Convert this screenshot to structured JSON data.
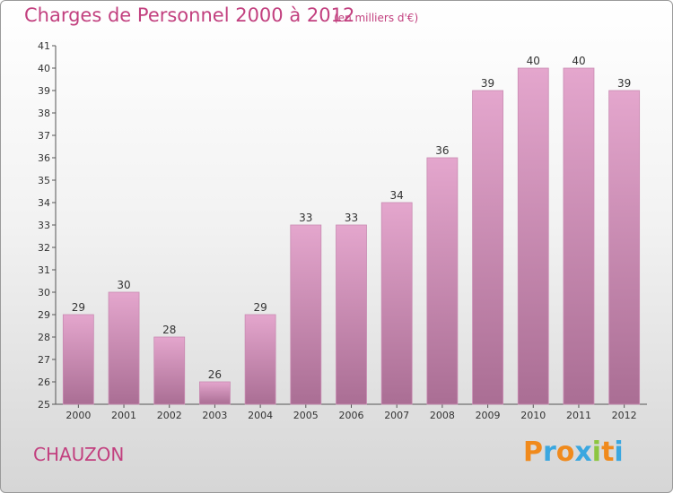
{
  "header": {
    "title": "Charges de Personnel 2000 à 2012",
    "subtitle": "(en milliers d'€)"
  },
  "footer": {
    "commune": "CHAUZON",
    "logo_text": "Proxiti",
    "logo_colors": [
      "#f08a1c",
      "#3aa7e0",
      "#f08a1c",
      "#3aa7e0",
      "#8cc63f",
      "#f08a1c",
      "#3aa7e0"
    ]
  },
  "colors": {
    "title": "#c2407f",
    "bar_top": "#e4a6cd",
    "bar_bottom": "#aa6e94",
    "axis_text": "#333333"
  },
  "chart_data": {
    "type": "bar",
    "title": "Charges de Personnel 2000 à 2012",
    "subtitle": "(en milliers d'€)",
    "categories": [
      "2000",
      "2001",
      "2002",
      "2003",
      "2004",
      "2005",
      "2006",
      "2007",
      "2008",
      "2009",
      "2010",
      "2011",
      "2012"
    ],
    "values": [
      29,
      30,
      28,
      26,
      29,
      33,
      33,
      34,
      36,
      39,
      40,
      40,
      39
    ],
    "ylim": [
      25,
      41
    ],
    "yticks": [
      25,
      26,
      27,
      28,
      29,
      30,
      31,
      32,
      33,
      34,
      35,
      36,
      37,
      38,
      39,
      40,
      41
    ],
    "grid": false,
    "data_labels": true
  }
}
